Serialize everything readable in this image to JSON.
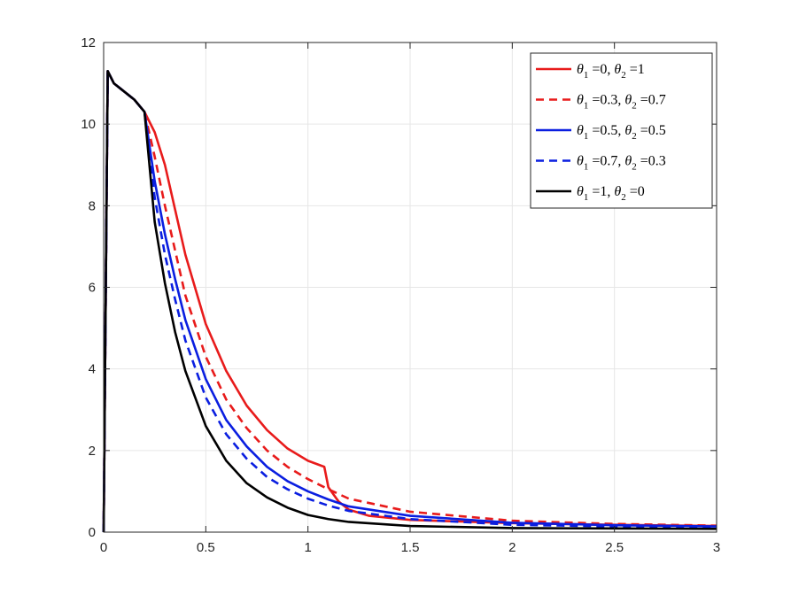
{
  "chart_data": {
    "type": "line",
    "title": "",
    "xlabel": "",
    "ylabel": "",
    "xlim": [
      0,
      3
    ],
    "ylim": [
      0,
      12
    ],
    "xticks": [
      0,
      0.5,
      1,
      1.5,
      2,
      2.5,
      3
    ],
    "xtick_labels": [
      "0",
      "0.5",
      "1",
      "1.5",
      "2",
      "2.5",
      "3"
    ],
    "yticks": [
      0,
      2,
      4,
      6,
      8,
      10,
      12
    ],
    "ytick_labels": [
      "0",
      "2",
      "4",
      "6",
      "8",
      "10",
      "12"
    ],
    "grid": true,
    "legend_position": "top-right",
    "series": [
      {
        "name": "θ1 =0, θ2 =1",
        "legend": {
          "a": "θ",
          "a_sub": "1",
          "b": " =0, ",
          "c": "θ",
          "c_sub": "2",
          "d": " =1"
        },
        "color": "#e81b1b",
        "dash": "solid",
        "x": [
          0,
          0.02,
          0.05,
          0.1,
          0.15,
          0.2,
          0.25,
          0.3,
          0.35,
          0.4,
          0.5,
          0.6,
          0.7,
          0.8,
          0.9,
          1.0,
          1.07,
          1.08,
          1.1,
          1.15,
          1.2,
          1.3,
          1.5,
          2.0,
          2.5,
          3.0
        ],
        "y": [
          0,
          11.3,
          11.0,
          10.8,
          10.6,
          10.3,
          9.8,
          9.0,
          7.9,
          6.8,
          5.1,
          3.95,
          3.1,
          2.5,
          2.05,
          1.75,
          1.62,
          1.6,
          1.1,
          0.75,
          0.55,
          0.4,
          0.3,
          0.22,
          0.18,
          0.15
        ]
      },
      {
        "name": "θ1 =0.3, θ2 =0.7",
        "legend": {
          "a": "θ",
          "a_sub": "1",
          "b": " =0.3, ",
          "c": "θ",
          "c_sub": "2",
          "d": " =0.7"
        },
        "color": "#e81b1b",
        "dash": "dashed",
        "x": [
          0,
          0.02,
          0.05,
          0.1,
          0.15,
          0.2,
          0.25,
          0.3,
          0.35,
          0.4,
          0.5,
          0.6,
          0.7,
          0.8,
          0.9,
          1.0,
          1.1,
          1.2,
          1.5,
          2.0,
          2.5,
          3.0
        ],
        "y": [
          0,
          11.3,
          11.0,
          10.8,
          10.6,
          10.3,
          9.2,
          8.0,
          6.9,
          5.8,
          4.3,
          3.25,
          2.55,
          2.0,
          1.6,
          1.3,
          1.05,
          0.82,
          0.5,
          0.28,
          0.2,
          0.16
        ]
      },
      {
        "name": "θ1 =0.5, θ2 =0.5",
        "legend": {
          "a": "θ",
          "a_sub": "1",
          "b": " =0.5, ",
          "c": "θ",
          "c_sub": "2",
          "d": " =0.5"
        },
        "color": "#0a1ee0",
        "dash": "solid",
        "x": [
          0,
          0.02,
          0.05,
          0.1,
          0.15,
          0.2,
          0.25,
          0.3,
          0.35,
          0.4,
          0.5,
          0.6,
          0.7,
          0.8,
          0.9,
          1.0,
          1.1,
          1.2,
          1.5,
          2.0,
          2.5,
          3.0
        ],
        "y": [
          0,
          11.3,
          11.0,
          10.8,
          10.6,
          10.3,
          8.6,
          7.3,
          6.2,
          5.2,
          3.75,
          2.75,
          2.1,
          1.6,
          1.25,
          1.0,
          0.8,
          0.63,
          0.4,
          0.23,
          0.17,
          0.14
        ]
      },
      {
        "name": "θ1 =0.7, θ2 =0.3",
        "legend": {
          "a": "θ",
          "a_sub": "1",
          "b": " =0.7, ",
          "c": "θ",
          "c_sub": "2",
          "d": " =0.3"
        },
        "color": "#0a1ee0",
        "dash": "dashed",
        "x": [
          0,
          0.02,
          0.05,
          0.1,
          0.15,
          0.2,
          0.25,
          0.3,
          0.35,
          0.4,
          0.5,
          0.6,
          0.7,
          0.8,
          0.9,
          1.0,
          1.1,
          1.2,
          1.5,
          2.0,
          2.5,
          3.0
        ],
        "y": [
          0,
          11.3,
          11.0,
          10.8,
          10.6,
          10.3,
          8.2,
          6.8,
          5.7,
          4.7,
          3.3,
          2.4,
          1.8,
          1.35,
          1.05,
          0.82,
          0.65,
          0.52,
          0.32,
          0.18,
          0.14,
          0.12
        ]
      },
      {
        "name": "θ1 =1, θ2 =0",
        "legend": {
          "a": "θ",
          "a_sub": "1",
          "b": " =1, ",
          "c": "θ",
          "c_sub": "2",
          "d": " =0"
        },
        "color": "#000000",
        "dash": "solid",
        "x": [
          0,
          0.02,
          0.05,
          0.1,
          0.15,
          0.2,
          0.25,
          0.3,
          0.35,
          0.4,
          0.5,
          0.6,
          0.7,
          0.8,
          0.9,
          1.0,
          1.1,
          1.2,
          1.5,
          2.0,
          2.5,
          3.0
        ],
        "y": [
          0,
          11.3,
          11.0,
          10.8,
          10.6,
          10.3,
          7.6,
          6.1,
          4.9,
          3.95,
          2.6,
          1.75,
          1.2,
          0.85,
          0.6,
          0.42,
          0.32,
          0.25,
          0.15,
          0.1,
          0.09,
          0.08
        ]
      }
    ]
  }
}
